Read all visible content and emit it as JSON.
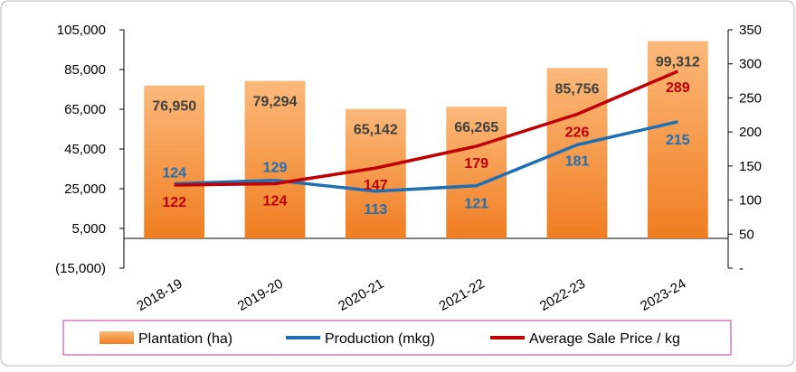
{
  "chart_data": {
    "type": "bar_line",
    "categories": [
      "2018-19",
      "2019-20",
      "2020-21",
      "2021-22",
      "2022-23",
      "2023-24"
    ],
    "series": [
      {
        "name": "Plantation (ha)",
        "type": "bar",
        "color": "#f79646",
        "values": [
          76950,
          79294,
          65142,
          66265,
          85756,
          99312
        ],
        "value_labels": [
          "76,950",
          "79,294",
          "65,142",
          "66,265",
          "85,756",
          "99,312"
        ]
      },
      {
        "name": "Production (mkg)",
        "type": "line",
        "axis": "y2",
        "color": "#1f6fb5",
        "values": [
          124,
          129,
          113,
          121,
          181,
          215
        ]
      },
      {
        "name": "Average Sale Price / kg",
        "type": "line",
        "axis": "y2",
        "color": "#c00000",
        "values": [
          122,
          124,
          147,
          179,
          226,
          289
        ]
      }
    ],
    "ylim": [
      -15000,
      105000
    ],
    "yticks": [
      {
        "value": -15000,
        "label": "(15,000)"
      },
      {
        "value": 5000,
        "label": "5,000"
      },
      {
        "value": 25000,
        "label": "25,000"
      },
      {
        "value": 45000,
        "label": "45,000"
      },
      {
        "value": 65000,
        "label": "65,000"
      },
      {
        "value": 85000,
        "label": "85,000"
      },
      {
        "value": 105000,
        "label": "105,000"
      }
    ],
    "y2lim": [
      0,
      350
    ],
    "y2ticks": [
      {
        "value": 0,
        "label": "-"
      },
      50,
      100,
      150,
      200,
      250,
      300,
      350
    ],
    "legend": "bottom"
  }
}
